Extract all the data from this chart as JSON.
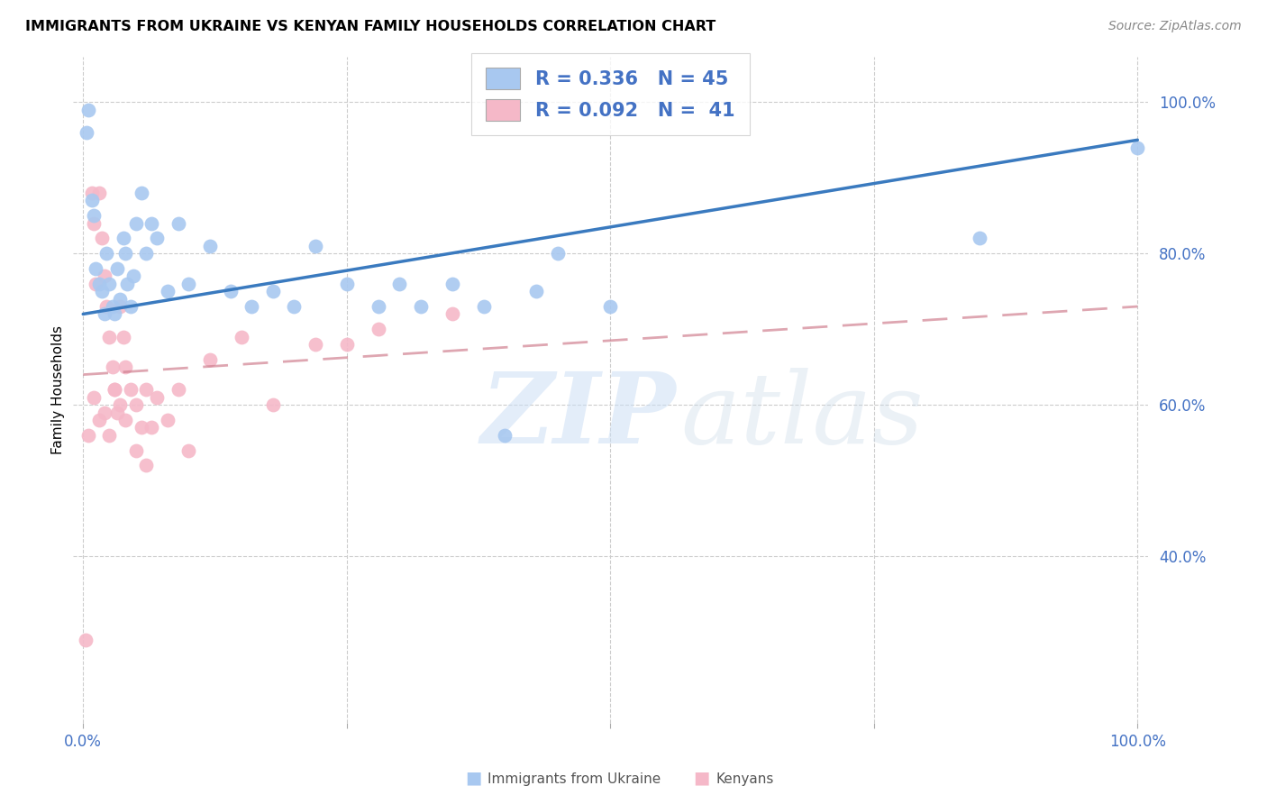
{
  "title": "IMMIGRANTS FROM UKRAINE VS KENYAN FAMILY HOUSEHOLDS CORRELATION CHART",
  "source": "Source: ZipAtlas.com",
  "ylabel": "Family Households",
  "ukraine_color": "#a8c8f0",
  "kenyan_color": "#f5b8c8",
  "ukraine_line_color": "#3a7abf",
  "kenyan_line_color": "#d08090",
  "legend1_R": "0.336",
  "legend1_N": "45",
  "legend2_R": "0.092",
  "legend2_N": "41",
  "bottom_legend1": "Immigrants from Ukraine",
  "bottom_legend2": "Kenyans",
  "ukraine_x": [
    0.003,
    0.005,
    0.008,
    0.01,
    0.012,
    0.015,
    0.018,
    0.02,
    0.022,
    0.025,
    0.028,
    0.03,
    0.032,
    0.035,
    0.038,
    0.04,
    0.042,
    0.045,
    0.048,
    0.05,
    0.055,
    0.06,
    0.065,
    0.07,
    0.08,
    0.09,
    0.1,
    0.12,
    0.14,
    0.16,
    0.18,
    0.2,
    0.22,
    0.25,
    0.28,
    0.3,
    0.32,
    0.35,
    0.38,
    0.4,
    0.43,
    0.45,
    0.5,
    0.85,
    1.0
  ],
  "ukraine_y": [
    0.96,
    0.99,
    0.87,
    0.85,
    0.78,
    0.76,
    0.75,
    0.72,
    0.8,
    0.76,
    0.73,
    0.72,
    0.78,
    0.74,
    0.82,
    0.8,
    0.76,
    0.73,
    0.77,
    0.84,
    0.88,
    0.8,
    0.84,
    0.82,
    0.75,
    0.84,
    0.76,
    0.81,
    0.75,
    0.73,
    0.75,
    0.73,
    0.81,
    0.76,
    0.73,
    0.76,
    0.73,
    0.76,
    0.73,
    0.56,
    0.75,
    0.8,
    0.73,
    0.82,
    0.94
  ],
  "kenyan_x": [
    0.002,
    0.005,
    0.008,
    0.01,
    0.012,
    0.015,
    0.018,
    0.02,
    0.022,
    0.025,
    0.028,
    0.03,
    0.032,
    0.035,
    0.038,
    0.04,
    0.045,
    0.05,
    0.055,
    0.06,
    0.065,
    0.07,
    0.08,
    0.09,
    0.1,
    0.12,
    0.15,
    0.18,
    0.22,
    0.28,
    0.35,
    0.01,
    0.015,
    0.02,
    0.025,
    0.03,
    0.035,
    0.04,
    0.05,
    0.06,
    0.25
  ],
  "kenyan_y": [
    0.29,
    0.56,
    0.88,
    0.84,
    0.76,
    0.88,
    0.82,
    0.77,
    0.73,
    0.69,
    0.65,
    0.62,
    0.59,
    0.73,
    0.69,
    0.65,
    0.62,
    0.6,
    0.57,
    0.62,
    0.57,
    0.61,
    0.58,
    0.62,
    0.54,
    0.66,
    0.69,
    0.6,
    0.68,
    0.7,
    0.72,
    0.61,
    0.58,
    0.59,
    0.56,
    0.62,
    0.6,
    0.58,
    0.54,
    0.52,
    0.68
  ],
  "xlim": [
    -0.01,
    1.01
  ],
  "ylim": [
    0.18,
    1.06
  ],
  "yticks": [
    0.4,
    0.6,
    0.8,
    1.0
  ],
  "ytick_labels": [
    "40.0%",
    "60.0%",
    "80.0%",
    "100.0%"
  ],
  "xticks": [
    0.0,
    0.25,
    0.5,
    0.75,
    1.0
  ],
  "xtick_labels_show": [
    "0.0%",
    "",
    "",
    "",
    "100.0%"
  ]
}
